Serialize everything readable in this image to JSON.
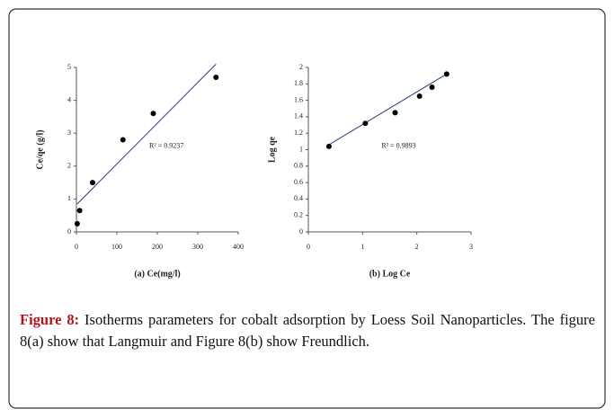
{
  "chart_data": [
    {
      "type": "scatter",
      "x_label": "(a) Ce(mg/l)",
      "y_label": "Ce/qe (g/l)",
      "x": [
        2,
        8,
        40,
        115,
        190,
        345
      ],
      "values": [
        0.25,
        0.65,
        1.5,
        2.8,
        3.6,
        4.7
      ],
      "color": "#000000",
      "trendline": {
        "x": [
          2,
          345
        ],
        "y": [
          0.85,
          5.1
        ]
      },
      "annotation": "R² = 0.9237",
      "xlim": [
        0,
        400
      ],
      "xticks": [
        0,
        100,
        200,
        300,
        400
      ],
      "ylim": [
        0,
        5
      ],
      "yticks": [
        0,
        1,
        2,
        3,
        4,
        5
      ]
    },
    {
      "type": "scatter",
      "x_label": "(b) Log Ce",
      "y_label": "Log qe",
      "x": [
        0.38,
        1.05,
        1.6,
        2.05,
        2.28,
        2.55
      ],
      "values": [
        1.04,
        1.32,
        1.45,
        1.65,
        1.76,
        1.92
      ],
      "color": "#000000",
      "trendline": {
        "x": [
          0.38,
          2.55
        ],
        "y": [
          1.06,
          1.92
        ]
      },
      "annotation": "R² = 0.9893",
      "xlim": [
        0,
        3
      ],
      "xticks": [
        0,
        1,
        2,
        3
      ],
      "ylim": [
        0,
        2
      ],
      "yticks": [
        0,
        0.2,
        0.4,
        0.6,
        0.8,
        1,
        1.2,
        1.4,
        1.6,
        1.8,
        2
      ]
    }
  ],
  "caption": {
    "label": "Figure 8:",
    "text": " Isotherms parameters for cobalt adsorption by Loess Soil Nanoparticles. The figure 8(a) show that Langmuir and Figure 8(b) show Freundlich."
  }
}
